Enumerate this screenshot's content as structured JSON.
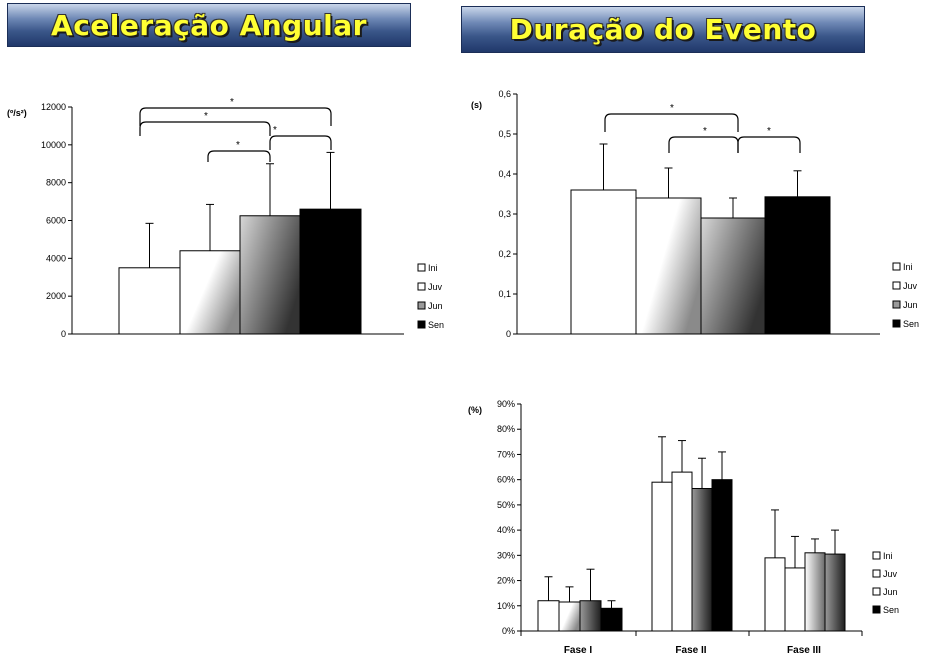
{
  "banners": {
    "left": "Aceleração Angular",
    "right": "Duração do Evento"
  },
  "colors": {
    "banner_text": "#ffff33",
    "banner_bg": "#3a5689"
  },
  "chart_data": [
    {
      "id": "aceleracao",
      "type": "bar",
      "ylabel": "(º/s²)",
      "ylim": [
        0,
        12000
      ],
      "yticks": [
        0,
        2000,
        4000,
        6000,
        8000,
        10000,
        12000
      ],
      "ytick_labels": [
        "0",
        "2000",
        "4000",
        "6000",
        "8000",
        "10000",
        "12000"
      ],
      "categories": [
        ""
      ],
      "series": [
        {
          "name": "Ini",
          "values": [
            3500
          ],
          "error": [
            2350
          ]
        },
        {
          "name": "Juv",
          "values": [
            4400
          ],
          "error": [
            2450
          ]
        },
        {
          "name": "Jun",
          "values": [
            6250
          ],
          "error": [
            2750
          ]
        },
        {
          "name": "Sen",
          "values": [
            6600
          ],
          "error": [
            3000
          ]
        }
      ],
      "significance": [
        {
          "from": "Ini",
          "to": "Sen",
          "label": "*"
        },
        {
          "from": "Ini",
          "to": "Jun",
          "label": "*"
        },
        {
          "from": "Juv",
          "to": "Jun",
          "label": "*"
        },
        {
          "from": "Jun",
          "to": "Sen",
          "label": "*"
        }
      ],
      "legend": "right"
    },
    {
      "id": "duracao",
      "type": "bar",
      "ylabel": "(s)",
      "ylim": [
        0,
        0.6
      ],
      "yticks": [
        0,
        0.1,
        0.2,
        0.3,
        0.4,
        0.5,
        0.6
      ],
      "ytick_labels": [
        "0",
        "0,1",
        "0,2",
        "0,3",
        "0,4",
        "0,5",
        "0,6"
      ],
      "categories": [
        ""
      ],
      "series": [
        {
          "name": "Ini",
          "values": [
            0.36
          ],
          "error": [
            0.115
          ]
        },
        {
          "name": "Juv",
          "values": [
            0.34
          ],
          "error": [
            0.075
          ]
        },
        {
          "name": "Jun",
          "values": [
            0.29
          ],
          "error": [
            0.05
          ]
        },
        {
          "name": "Sen",
          "values": [
            0.343
          ],
          "error": [
            0.065
          ]
        }
      ],
      "significance": [
        {
          "from": "Ini",
          "to": "Jun",
          "label": "*"
        },
        {
          "from": "Juv",
          "to": "Jun",
          "label": "*"
        },
        {
          "from": "Jun",
          "to": "Sen",
          "label": "*"
        }
      ],
      "legend": "right"
    },
    {
      "id": "fases",
      "type": "bar",
      "ylabel": "(%)",
      "ylim": [
        0,
        90
      ],
      "yticks": [
        0,
        10,
        20,
        30,
        40,
        50,
        60,
        70,
        80,
        90
      ],
      "ytick_labels": [
        "0%",
        "10%",
        "20%",
        "30%",
        "40%",
        "50%",
        "60%",
        "70%",
        "80%",
        "90%"
      ],
      "categories": [
        "Fase I",
        "Fase II",
        "Fase III"
      ],
      "series": [
        {
          "name": "Ini",
          "values": [
            12,
            59,
            29
          ],
          "error": [
            9.5,
            18,
            19
          ]
        },
        {
          "name": "Juv",
          "values": [
            11.5,
            63,
            25
          ],
          "error": [
            6,
            12.5,
            12.5
          ]
        },
        {
          "name": "Jun",
          "values": [
            12,
            56.5,
            31
          ],
          "error": [
            12.5,
            12,
            5.5
          ]
        },
        {
          "name": "Sen",
          "values": [
            9,
            60,
            30.5
          ],
          "error": [
            3,
            11,
            9.5
          ]
        }
      ],
      "legend": "right"
    }
  ]
}
